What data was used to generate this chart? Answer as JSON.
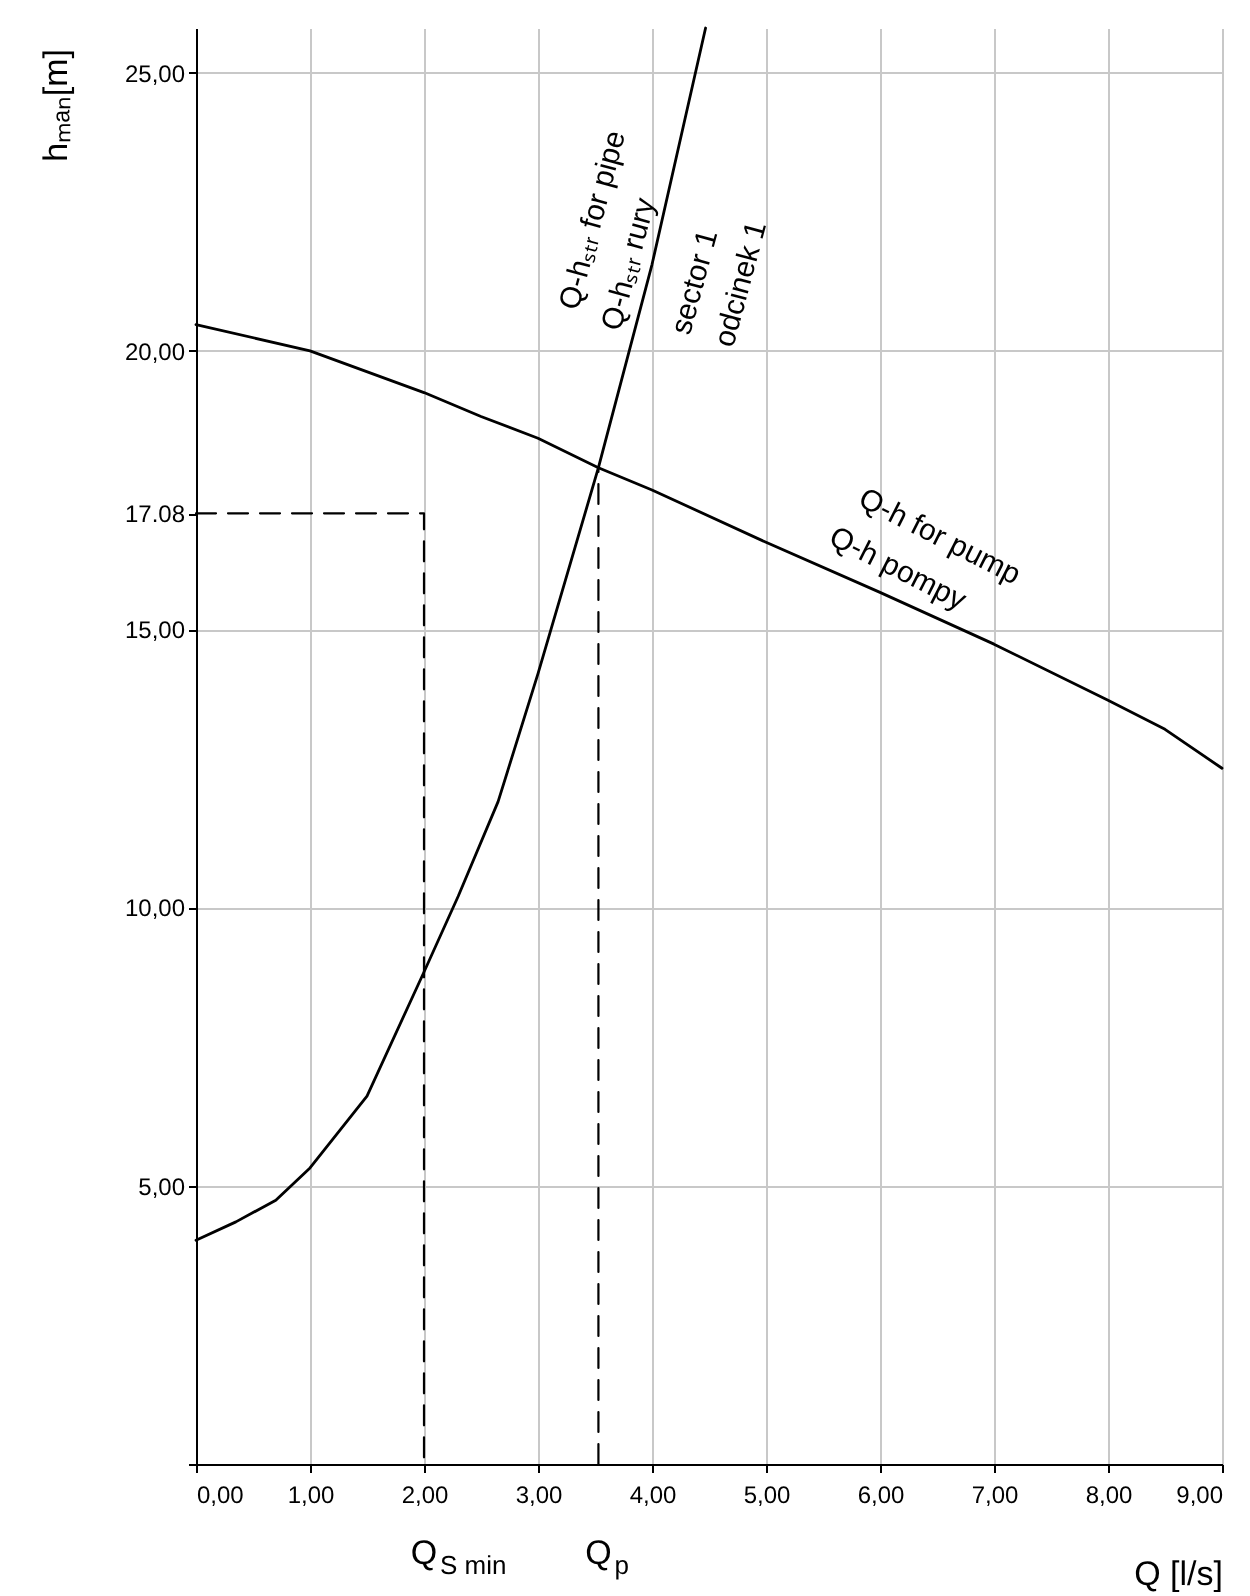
{
  "chart_data": {
    "type": "line",
    "xlabel": "Q  [l/s]",
    "ylabel": "hₘₐₙ[m]",
    "xlim": [
      0,
      9
    ],
    "ylim": [
      0,
      25.8
    ],
    "xticks": [
      {
        "value": 0,
        "label": "0,00"
      },
      {
        "value": 1,
        "label": "1,00"
      },
      {
        "value": 2,
        "label": "2,00"
      },
      {
        "value": 3,
        "label": "3,00"
      },
      {
        "value": 4,
        "label": "4,00"
      },
      {
        "value": 5,
        "label": "5,00"
      },
      {
        "value": 6,
        "label": "6,00"
      },
      {
        "value": 7,
        "label": "7,00"
      },
      {
        "value": 8,
        "label": "8,00"
      },
      {
        "value": 9,
        "label": "9,00"
      }
    ],
    "yticks": [
      {
        "value": 0,
        "label": null
      },
      {
        "value": 5,
        "label": "5,00"
      },
      {
        "value": 10,
        "label": "10,00"
      },
      {
        "value": 15,
        "label": "15,00"
      },
      {
        "value": 17.08,
        "label": "17.08"
      },
      {
        "value": 20,
        "label": "20,00"
      },
      {
        "value": 25,
        "label": "25,00"
      }
    ],
    "grid": true,
    "line_style": "solid",
    "series": [
      {
        "color": "#000000",
        "x": [
          0,
          1,
          2,
          2.5,
          3,
          3.53,
          4,
          5,
          6,
          7,
          8,
          8.5,
          9
        ],
        "values": [
          20.47,
          20.0,
          19.25,
          18.82,
          18.43,
          17.9,
          17.5,
          16.56,
          15.66,
          14.73,
          13.72,
          13.2,
          12.5
        ]
      },
      {
        "color": "#000000",
        "x": [
          0,
          0.35,
          0.7,
          1,
          1.5,
          2,
          2.3,
          2.65,
          3,
          3.53,
          4,
          4.47
        ],
        "values": [
          4.02,
          4.35,
          4.74,
          5.32,
          6.61,
          8.84,
          10.2,
          11.9,
          14.2,
          17.9,
          21.55,
          25.8
        ]
      },
      {
        "color": "#000000",
        "line_style": "dashed",
        "x": [
          0,
          2,
          2
        ],
        "values": [
          17.08,
          17.08,
          0
        ]
      },
      {
        "color": "#000000",
        "line_style": "dashed",
        "x": [
          3.53,
          3.53
        ],
        "values": [
          0,
          17.9
        ]
      }
    ],
    "annotations": [
      {
        "text": "Q$_{S min}$",
        "x": 2,
        "y": 0
      },
      {
        "text": "Q$_{p}$",
        "x": 3.53,
        "y": 0
      },
      "Q-hₛₜᵣ  for pipe",
      "Q-hₛₜᵣ  rury",
      "sector 1",
      "odcinek 1",
      "Q-h for pump",
      "Q-h pompy"
    ]
  }
}
